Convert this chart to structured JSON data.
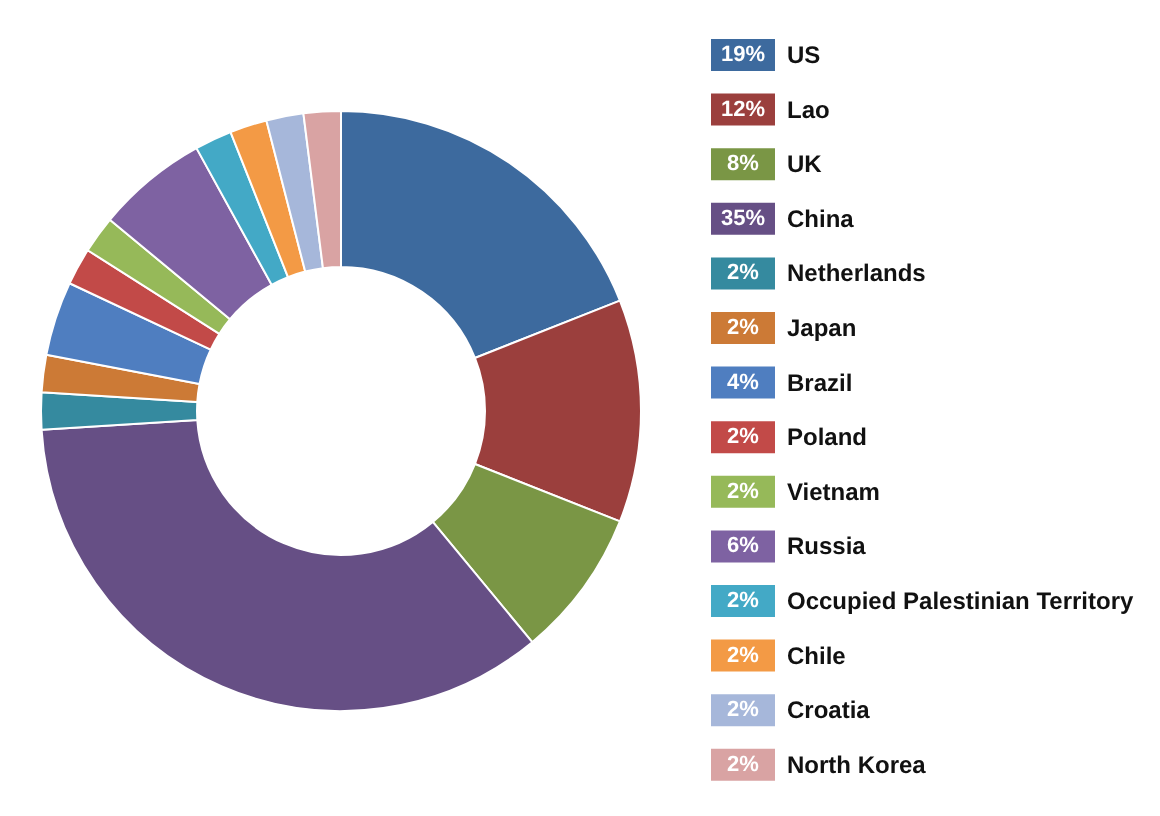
{
  "chart_data": {
    "type": "donut",
    "categories": [
      "US",
      "Lao",
      "UK",
      "China",
      "Netherlands",
      "Japan",
      "Brazil",
      "Poland",
      "Vietnam",
      "Russia",
      "Occupied Palestinian Territory",
      "Chile",
      "Croatia",
      "North Korea"
    ],
    "values": [
      19,
      12,
      8,
      35,
      2,
      2,
      4,
      2,
      2,
      6,
      2,
      2,
      2,
      2
    ],
    "colors": [
      "#3d6a9e",
      "#9b3f3d",
      "#7a9645",
      "#664f85",
      "#358a9f",
      "#cc7a36",
      "#4f7ec0",
      "#c24a48",
      "#96b959",
      "#7e62a2",
      "#43a9c6",
      "#f39a45",
      "#a6b7da",
      "#d9a3a3"
    ],
    "value_labels": [
      "19%",
      "12%",
      "8%",
      "35%",
      "2%",
      "2%",
      "4%",
      "2%",
      "2%",
      "6%",
      "2%",
      "2%",
      "2%",
      "2%"
    ],
    "legend": "right"
  }
}
